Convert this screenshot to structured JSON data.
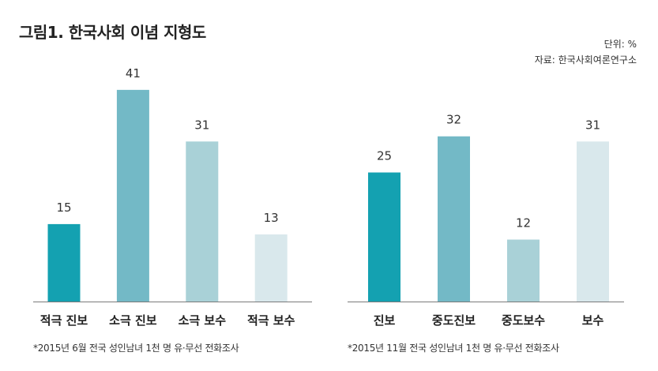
{
  "title": "그림1. 한국사회 이념 지형도",
  "unit": "단위: %",
  "source": "자료: 한국사회여론연구소",
  "chart_data": [
    {
      "type": "bar",
      "categories": [
        "적극 진보",
        "소극 진보",
        "소극 보수",
        "적극 보수"
      ],
      "values": [
        15,
        41,
        31,
        13
      ],
      "colors": [
        "#14a1b1",
        "#73b9c6",
        "#a9d1d7",
        "#d9e8ec"
      ],
      "footnote": "*2015년 6월 전국 성인남녀 1천 명 유·무선 전화조사"
    },
    {
      "type": "bar",
      "categories": [
        "진보",
        "중도진보",
        "중도보수",
        "보수"
      ],
      "values": [
        25,
        32,
        12,
        31
      ],
      "colors": [
        "#14a1b1",
        "#73b9c6",
        "#a9d1d7",
        "#d9e8ec"
      ],
      "footnote": "*2015년 11월 전국 성인남녀 1천 명 유·무선 전화조사"
    }
  ]
}
